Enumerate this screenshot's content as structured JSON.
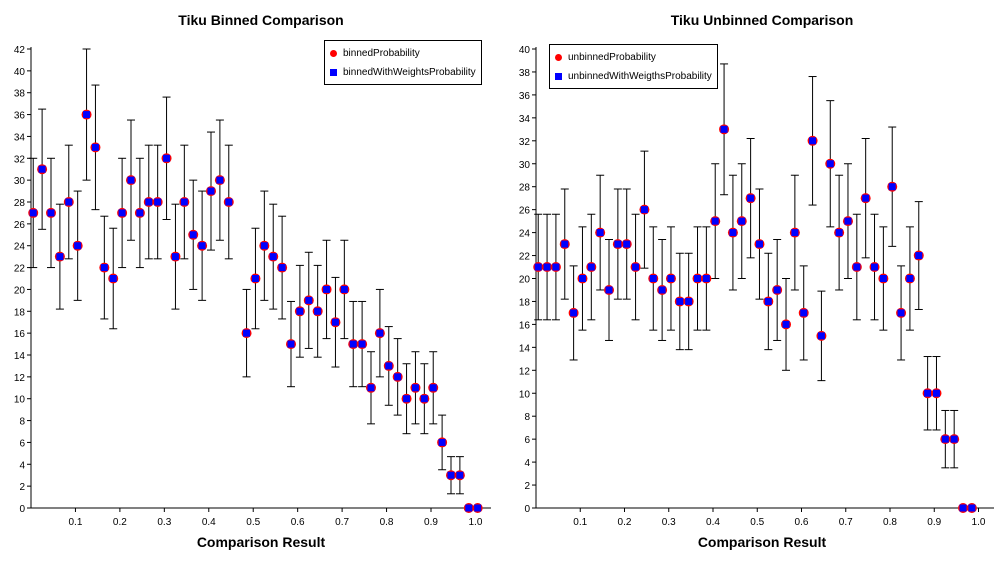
{
  "chart_data": [
    {
      "type": "scatter",
      "title": "Tiku Binned Comparison",
      "xlabel": "Comparison Result",
      "ylabel": "",
      "xlim": [
        0.0,
        1.035
      ],
      "ylim": [
        0,
        42
      ],
      "x_ticks": [
        "0.1",
        "0.2",
        "0.3",
        "0.4",
        "0.5",
        "0.6",
        "0.7",
        "0.8",
        "0.9",
        "1.0"
      ],
      "y_ticks": [
        "0",
        "2",
        "4",
        "6",
        "8",
        "10",
        "12",
        "14",
        "16",
        "18",
        "20",
        "22",
        "24",
        "26",
        "28",
        "30",
        "32",
        "34",
        "36",
        "38",
        "40",
        "42"
      ],
      "legend_position": "top-right",
      "series": [
        {
          "name": "binnedProbability",
          "marker": "circle",
          "color": "#ff0000"
        },
        {
          "name": "binnedWithWeightsProbability",
          "marker": "square",
          "color": "#0000ff"
        }
      ],
      "points": [
        {
          "x": 0.005,
          "y": 27,
          "lo": 22,
          "hi": 32
        },
        {
          "x": 0.025,
          "y": 31,
          "lo": 25.5,
          "hi": 36.5
        },
        {
          "x": 0.045,
          "y": 27,
          "lo": 22,
          "hi": 32
        },
        {
          "x": 0.065,
          "y": 23,
          "lo": 18.2,
          "hi": 27.8
        },
        {
          "x": 0.085,
          "y": 28,
          "lo": 22.8,
          "hi": 33.2
        },
        {
          "x": 0.105,
          "y": 24,
          "lo": 19,
          "hi": 29
        },
        {
          "x": 0.125,
          "y": 36,
          "lo": 30,
          "hi": 42
        },
        {
          "x": 0.145,
          "y": 33,
          "lo": 27.3,
          "hi": 38.7
        },
        {
          "x": 0.165,
          "y": 22,
          "lo": 17.3,
          "hi": 26.7
        },
        {
          "x": 0.185,
          "y": 21,
          "lo": 16.4,
          "hi": 25.6
        },
        {
          "x": 0.205,
          "y": 27,
          "lo": 22,
          "hi": 32
        },
        {
          "x": 0.225,
          "y": 30,
          "lo": 24.5,
          "hi": 35.5
        },
        {
          "x": 0.245,
          "y": 27,
          "lo": 22,
          "hi": 32
        },
        {
          "x": 0.265,
          "y": 28,
          "lo": 22.8,
          "hi": 33.2
        },
        {
          "x": 0.285,
          "y": 28,
          "lo": 22.8,
          "hi": 33.2
        },
        {
          "x": 0.305,
          "y": 32,
          "lo": 26.4,
          "hi": 37.6
        },
        {
          "x": 0.325,
          "y": 23,
          "lo": 18.2,
          "hi": 27.8
        },
        {
          "x": 0.345,
          "y": 28,
          "lo": 22.8,
          "hi": 33.2
        },
        {
          "x": 0.365,
          "y": 25,
          "lo": 20,
          "hi": 30
        },
        {
          "x": 0.385,
          "y": 24,
          "lo": 19,
          "hi": 29
        },
        {
          "x": 0.405,
          "y": 29,
          "lo": 23.6,
          "hi": 34.4
        },
        {
          "x": 0.425,
          "y": 30,
          "lo": 24.5,
          "hi": 35.5
        },
        {
          "x": 0.445,
          "y": 28,
          "lo": 22.8,
          "hi": 33.2
        },
        {
          "x": 0.485,
          "y": 16,
          "lo": 12,
          "hi": 20
        },
        {
          "x": 0.505,
          "y": 21,
          "lo": 16.4,
          "hi": 25.6
        },
        {
          "x": 0.525,
          "y": 24,
          "lo": 19,
          "hi": 29
        },
        {
          "x": 0.545,
          "y": 23,
          "lo": 18.2,
          "hi": 27.8
        },
        {
          "x": 0.565,
          "y": 22,
          "lo": 17.3,
          "hi": 26.7
        },
        {
          "x": 0.585,
          "y": 15,
          "lo": 11.1,
          "hi": 18.9
        },
        {
          "x": 0.605,
          "y": 18,
          "lo": 13.8,
          "hi": 22.2
        },
        {
          "x": 0.625,
          "y": 19,
          "lo": 14.6,
          "hi": 23.4
        },
        {
          "x": 0.645,
          "y": 18,
          "lo": 13.8,
          "hi": 22.2
        },
        {
          "x": 0.665,
          "y": 20,
          "lo": 15.5,
          "hi": 24.5
        },
        {
          "x": 0.685,
          "y": 17,
          "lo": 12.9,
          "hi": 21.1
        },
        {
          "x": 0.705,
          "y": 20,
          "lo": 15.5,
          "hi": 24.5
        },
        {
          "x": 0.725,
          "y": 15,
          "lo": 11.1,
          "hi": 18.9
        },
        {
          "x": 0.745,
          "y": 15,
          "lo": 11.1,
          "hi": 18.9
        },
        {
          "x": 0.765,
          "y": 11,
          "lo": 7.7,
          "hi": 14.3
        },
        {
          "x": 0.785,
          "y": 16,
          "lo": 12,
          "hi": 20
        },
        {
          "x": 0.805,
          "y": 13,
          "lo": 9.4,
          "hi": 16.6
        },
        {
          "x": 0.825,
          "y": 12,
          "lo": 8.5,
          "hi": 15.5
        },
        {
          "x": 0.845,
          "y": 10,
          "lo": 6.8,
          "hi": 13.2
        },
        {
          "x": 0.865,
          "y": 11,
          "lo": 7.7,
          "hi": 14.3
        },
        {
          "x": 0.885,
          "y": 10,
          "lo": 6.8,
          "hi": 13.2
        },
        {
          "x": 0.905,
          "y": 11,
          "lo": 7.7,
          "hi": 14.3
        },
        {
          "x": 0.925,
          "y": 6,
          "lo": 3.5,
          "hi": 8.5
        },
        {
          "x": 0.945,
          "y": 3,
          "lo": 1.3,
          "hi": 4.7
        },
        {
          "x": 0.965,
          "y": 3,
          "lo": 1.3,
          "hi": 4.7
        },
        {
          "x": 0.985,
          "y": 0,
          "lo": 0,
          "hi": 0
        },
        {
          "x": 1.005,
          "y": 0,
          "lo": 0,
          "hi": 0
        }
      ]
    },
    {
      "type": "scatter",
      "title": "Tiku Unbinned Comparison",
      "xlabel": "Comparison Result",
      "ylabel": "",
      "xlim": [
        0.0,
        1.035
      ],
      "ylim": [
        0,
        40
      ],
      "x_ticks": [
        "0.1",
        "0.2",
        "0.3",
        "0.4",
        "0.5",
        "0.6",
        "0.7",
        "0.8",
        "0.9",
        "1.0"
      ],
      "y_ticks": [
        "0",
        "2",
        "4",
        "6",
        "8",
        "10",
        "12",
        "14",
        "16",
        "18",
        "20",
        "22",
        "24",
        "26",
        "28",
        "30",
        "32",
        "34",
        "36",
        "38",
        "40"
      ],
      "legend_position": "top-left",
      "series": [
        {
          "name": "unbinnedProbability",
          "marker": "circle",
          "color": "#ff0000"
        },
        {
          "name": "unbinnedWithWeigthsProbability",
          "marker": "square",
          "color": "#0000ff"
        }
      ],
      "points": [
        {
          "x": 0.005,
          "y": 21,
          "lo": 16.4,
          "hi": 25.6
        },
        {
          "x": 0.025,
          "y": 21,
          "lo": 16.4,
          "hi": 25.6
        },
        {
          "x": 0.045,
          "y": 21,
          "lo": 16.4,
          "hi": 25.6
        },
        {
          "x": 0.065,
          "y": 23,
          "lo": 18.2,
          "hi": 27.8
        },
        {
          "x": 0.085,
          "y": 17,
          "lo": 12.9,
          "hi": 21.1
        },
        {
          "x": 0.105,
          "y": 20,
          "lo": 15.5,
          "hi": 24.5
        },
        {
          "x": 0.125,
          "y": 21,
          "lo": 16.4,
          "hi": 25.6
        },
        {
          "x": 0.145,
          "y": 24,
          "lo": 19,
          "hi": 29
        },
        {
          "x": 0.165,
          "y": 19,
          "lo": 14.6,
          "hi": 23.4
        },
        {
          "x": 0.185,
          "y": 23,
          "lo": 18.2,
          "hi": 27.8
        },
        {
          "x": 0.205,
          "y": 23,
          "lo": 18.2,
          "hi": 27.8
        },
        {
          "x": 0.225,
          "y": 21,
          "lo": 16.4,
          "hi": 25.6
        },
        {
          "x": 0.245,
          "y": 26,
          "lo": 20.9,
          "hi": 31.1
        },
        {
          "x": 0.265,
          "y": 20,
          "lo": 15.5,
          "hi": 24.5
        },
        {
          "x": 0.285,
          "y": 19,
          "lo": 14.6,
          "hi": 23.4
        },
        {
          "x": 0.305,
          "y": 20,
          "lo": 15.5,
          "hi": 24.5
        },
        {
          "x": 0.325,
          "y": 18,
          "lo": 13.8,
          "hi": 22.2
        },
        {
          "x": 0.345,
          "y": 18,
          "lo": 13.8,
          "hi": 22.2
        },
        {
          "x": 0.365,
          "y": 20,
          "lo": 15.5,
          "hi": 24.5
        },
        {
          "x": 0.385,
          "y": 20,
          "lo": 15.5,
          "hi": 24.5
        },
        {
          "x": 0.405,
          "y": 25,
          "lo": 20,
          "hi": 30
        },
        {
          "x": 0.425,
          "y": 33,
          "lo": 27.3,
          "hi": 38.7
        },
        {
          "x": 0.445,
          "y": 24,
          "lo": 19,
          "hi": 29
        },
        {
          "x": 0.465,
          "y": 25,
          "lo": 20,
          "hi": 30
        },
        {
          "x": 0.485,
          "y": 27,
          "lo": 21.8,
          "hi": 32.2
        },
        {
          "x": 0.505,
          "y": 23,
          "lo": 18.2,
          "hi": 27.8
        },
        {
          "x": 0.525,
          "y": 18,
          "lo": 13.8,
          "hi": 22.2
        },
        {
          "x": 0.545,
          "y": 19,
          "lo": 14.6,
          "hi": 23.4
        },
        {
          "x": 0.565,
          "y": 16,
          "lo": 12,
          "hi": 20
        },
        {
          "x": 0.585,
          "y": 24,
          "lo": 19,
          "hi": 29
        },
        {
          "x": 0.605,
          "y": 17,
          "lo": 12.9,
          "hi": 21.1
        },
        {
          "x": 0.625,
          "y": 32,
          "lo": 26.4,
          "hi": 37.6
        },
        {
          "x": 0.645,
          "y": 15,
          "lo": 11.1,
          "hi": 18.9
        },
        {
          "x": 0.665,
          "y": 30,
          "lo": 24.5,
          "hi": 35.5
        },
        {
          "x": 0.685,
          "y": 24,
          "lo": 19,
          "hi": 29
        },
        {
          "x": 0.705,
          "y": 25,
          "lo": 20,
          "hi": 30
        },
        {
          "x": 0.725,
          "y": 21,
          "lo": 16.4,
          "hi": 25.6
        },
        {
          "x": 0.745,
          "y": 27,
          "lo": 21.8,
          "hi": 32.2
        },
        {
          "x": 0.765,
          "y": 21,
          "lo": 16.4,
          "hi": 25.6
        },
        {
          "x": 0.785,
          "y": 20,
          "lo": 15.5,
          "hi": 24.5
        },
        {
          "x": 0.805,
          "y": 28,
          "lo": 22.8,
          "hi": 33.2
        },
        {
          "x": 0.825,
          "y": 17,
          "lo": 12.9,
          "hi": 21.1
        },
        {
          "x": 0.845,
          "y": 20,
          "lo": 15.5,
          "hi": 24.5
        },
        {
          "x": 0.865,
          "y": 22,
          "lo": 17.3,
          "hi": 26.7
        },
        {
          "x": 0.885,
          "y": 10,
          "lo": 6.8,
          "hi": 13.2
        },
        {
          "x": 0.905,
          "y": 10,
          "lo": 6.8,
          "hi": 13.2
        },
        {
          "x": 0.925,
          "y": 6,
          "lo": 3.5,
          "hi": 8.5
        },
        {
          "x": 0.945,
          "y": 6,
          "lo": 3.5,
          "hi": 8.5
        },
        {
          "x": 0.965,
          "y": 0,
          "lo": 0,
          "hi": 0
        },
        {
          "x": 0.985,
          "y": 0,
          "lo": 0,
          "hi": 0
        }
      ]
    }
  ]
}
